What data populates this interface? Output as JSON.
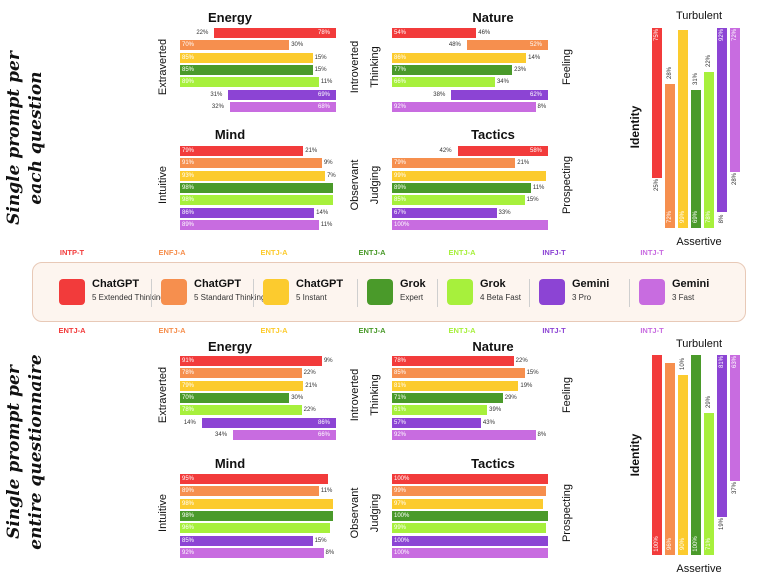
{
  "colors": {
    "chatgpt_extended": "#f23b3b",
    "chatgpt_standard": "#f68f4e",
    "chatgpt_instant": "#fccb2e",
    "grok_expert": "#4a9a2a",
    "grok_beta": "#a7f03c",
    "gemini_pro": "#8c44d4",
    "gemini_fast": "#c86ce0",
    "legend_border": "#e8c9b7",
    "legend_bg": "#fdf5ef"
  },
  "row_titles": [
    "Single prompt per each question",
    "Single prompt per entire questionnaire"
  ],
  "legend": [
    {
      "name": "ChatGPT",
      "sub": "5 Extended Thinking",
      "color": "#f23b3b"
    },
    {
      "name": "ChatGPT",
      "sub": "5 Standard Thinking",
      "color": "#f68f4e"
    },
    {
      "name": "ChatGPT",
      "sub": "5 Instant",
      "color": "#fccb2e"
    },
    {
      "name": "Grok",
      "sub": "Expert",
      "color": "#4a9a2a"
    },
    {
      "name": "Grok",
      "sub": "4 Beta Fast",
      "color": "#a7f03c"
    },
    {
      "name": "Gemini",
      "sub": "3 Pro",
      "color": "#8c44d4"
    },
    {
      "name": "Gemini",
      "sub": "3 Fast",
      "color": "#c86ce0"
    }
  ],
  "mbti_top": [
    "INTP-T",
    "ENFJ-A",
    "ENTJ-A",
    "ENTJ-A",
    "ENTJ-A",
    "INFJ-T",
    "INTJ-T"
  ],
  "mbti_bottom": [
    "ENTJ-A",
    "ENTJ-A",
    "ENTJ-A",
    "ENTJ-A",
    "ENTJ-A",
    "INTJ-T",
    "INTJ-T"
  ],
  "chart_data": [
    {
      "type": "bar",
      "group": "Single prompt per each question",
      "title": "Energy",
      "left_label": "Extraverted",
      "right_label": "Introverted",
      "left_values": [
        22,
        70,
        85,
        85,
        89,
        31,
        32
      ],
      "right_values": [
        78,
        30,
        15,
        15,
        11,
        69,
        68
      ],
      "left_text": [
        "22%",
        "70%",
        "85%",
        "85%",
        "89%",
        "31%",
        "32%"
      ],
      "right_text": [
        "78%",
        "30%",
        "15%",
        "15%",
        "11%",
        "69%",
        "68%"
      ],
      "dominant": [
        "R",
        "L",
        "L",
        "L",
        "L",
        "R",
        "R"
      ]
    },
    {
      "type": "bar",
      "group": "Single prompt per each question",
      "title": "Nature",
      "left_label": "Thinking",
      "right_label": "Feeling",
      "left_values": [
        54,
        48,
        86,
        77,
        66,
        38,
        92
      ],
      "right_values": [
        46,
        52,
        14,
        23,
        34,
        62,
        8
      ],
      "left_text": [
        "54%",
        "48%",
        "86%",
        "77%",
        "66%",
        "38%",
        "92%"
      ],
      "right_text": [
        "46%",
        "52%",
        "14%",
        "23%",
        "34%",
        "62%",
        "8%"
      ],
      "dominant": [
        "L",
        "R",
        "L",
        "L",
        "L",
        "R",
        "L"
      ]
    },
    {
      "type": "bar",
      "group": "Single prompt per each question",
      "title": "Mind",
      "left_label": "Intuitive",
      "right_label": "Observant",
      "left_values": [
        79,
        91,
        93,
        98,
        98,
        86,
        89
      ],
      "right_values": [
        21,
        9,
        7,
        2,
        2,
        14,
        11
      ],
      "left_text": [
        "79%",
        "91%",
        "93%",
        "98%",
        "98%",
        "86%",
        "89%"
      ],
      "right_text": [
        "21%",
        "9%",
        "7%",
        "",
        "",
        "14%",
        "11%"
      ],
      "dominant": [
        "L",
        "L",
        "L",
        "L",
        "L",
        "L",
        "L"
      ]
    },
    {
      "type": "bar",
      "group": "Single prompt per each question",
      "title": "Tactics",
      "left_label": "Judging",
      "right_label": "Prospecting",
      "left_values": [
        42,
        79,
        99,
        89,
        85,
        67,
        100
      ],
      "right_values": [
        58,
        21,
        1,
        11,
        15,
        33,
        0
      ],
      "left_text": [
        "42%",
        "79%",
        "99%",
        "89%",
        "85%",
        "67%",
        "100%"
      ],
      "right_text": [
        "58%",
        "21%",
        "",
        "11%",
        "15%",
        "33%",
        ""
      ],
      "dominant": [
        "R",
        "L",
        "L",
        "L",
        "L",
        "L",
        "L"
      ]
    },
    {
      "type": "bar",
      "group": "Single prompt per each question",
      "title": "Identity",
      "top_label": "Turbulent",
      "bottom_label": "Assertive",
      "assertive_values": [
        25,
        72,
        99,
        69,
        78,
        8,
        28
      ],
      "turbulent_values": [
        75,
        28,
        1,
        31,
        22,
        92,
        72
      ],
      "assertive_text": [
        "25%",
        "72%",
        "99%",
        "69%",
        "78%",
        "8%",
        "28%"
      ],
      "turbulent_text": [
        "75%",
        "28%",
        "",
        "31%",
        "22%",
        "92%",
        "72%"
      ],
      "dominant": [
        "T",
        "A",
        "A",
        "A",
        "A",
        "T",
        "T"
      ]
    },
    {
      "type": "bar",
      "group": "Single prompt per entire questionnaire",
      "title": "Energy",
      "left_label": "Extraverted",
      "right_label": "Introverted",
      "left_values": [
        91,
        78,
        79,
        70,
        78,
        14,
        34
      ],
      "right_values": [
        9,
        22,
        21,
        30,
        22,
        86,
        66
      ],
      "left_text": [
        "91%",
        "78%",
        "79%",
        "70%",
        "78%",
        "14%",
        "34%"
      ],
      "right_text": [
        "9%",
        "22%",
        "21%",
        "30%",
        "22%",
        "86%",
        "66%"
      ],
      "dominant": [
        "L",
        "L",
        "L",
        "L",
        "L",
        "R",
        "R"
      ]
    },
    {
      "type": "bar",
      "group": "Single prompt per entire questionnaire",
      "title": "Nature",
      "left_label": "Thinking",
      "right_label": "Feeling",
      "left_values": [
        78,
        85,
        81,
        71,
        61,
        57,
        92
      ],
      "right_values": [
        22,
        15,
        19,
        29,
        39,
        43,
        8
      ],
      "left_text": [
        "78%",
        "85%",
        "81%",
        "71%",
        "61%",
        "57%",
        "92%"
      ],
      "right_text": [
        "22%",
        "15%",
        "19%",
        "29%",
        "39%",
        "43%",
        "8%"
      ],
      "dominant": [
        "L",
        "L",
        "L",
        "L",
        "L",
        "L",
        "L"
      ]
    },
    {
      "type": "bar",
      "group": "Single prompt per entire questionnaire",
      "title": "Mind",
      "left_label": "Intuitive",
      "right_label": "Observant",
      "left_values": [
        95,
        89,
        98,
        98,
        96,
        85,
        92
      ],
      "right_values": [
        5,
        11,
        2,
        2,
        4,
        15,
        8
      ],
      "left_text": [
        "95%",
        "89%",
        "98%",
        "98%",
        "96%",
        "85%",
        "92%"
      ],
      "right_text": [
        "",
        "11%",
        "",
        "",
        "",
        "15%",
        "8%"
      ],
      "dominant": [
        "L",
        "L",
        "L",
        "L",
        "L",
        "L",
        "L"
      ]
    },
    {
      "type": "bar",
      "group": "Single prompt per entire questionnaire",
      "title": "Tactics",
      "left_label": "Judging",
      "right_label": "Prospecting",
      "left_values": [
        100,
        99,
        97,
        100,
        99,
        100,
        100
      ],
      "right_values": [
        0,
        1,
        3,
        0,
        1,
        0,
        0
      ],
      "left_text": [
        "100%",
        "99%",
        "97%",
        "100%",
        "99%",
        "100%",
        "100%"
      ],
      "right_text": [
        "",
        "",
        "",
        "",
        "",
        "",
        ""
      ],
      "dominant": [
        "L",
        "L",
        "L",
        "L",
        "L",
        "L",
        "L"
      ]
    },
    {
      "type": "bar",
      "group": "Single prompt per entire questionnaire",
      "title": "Identity",
      "top_label": "Turbulent",
      "bottom_label": "Assertive",
      "assertive_values": [
        100,
        96,
        90,
        100,
        71,
        19,
        37
      ],
      "turbulent_values": [
        0,
        4,
        10,
        0,
        29,
        81,
        63
      ],
      "assertive_text": [
        "100%",
        "96%",
        "90%",
        "100%",
        "71%",
        "19%",
        "37%"
      ],
      "turbulent_text": [
        "",
        "",
        "10%",
        "",
        "29%",
        "81%",
        "63%"
      ],
      "dominant": [
        "A",
        "A",
        "A",
        "A",
        "A",
        "T",
        "T"
      ]
    }
  ]
}
